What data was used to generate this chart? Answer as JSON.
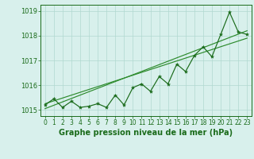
{
  "title": "Graphe pression niveau de la mer (hPa)",
  "x_values": [
    0,
    1,
    2,
    3,
    4,
    5,
    6,
    7,
    8,
    9,
    10,
    11,
    12,
    13,
    14,
    15,
    16,
    17,
    18,
    19,
    20,
    21,
    22,
    23
  ],
  "y_values": [
    1015.2,
    1015.45,
    1015.1,
    1015.35,
    1015.1,
    1015.15,
    1015.25,
    1015.1,
    1015.6,
    1015.2,
    1015.9,
    1016.05,
    1015.75,
    1016.35,
    1016.05,
    1016.85,
    1016.55,
    1017.2,
    1017.55,
    1017.15,
    1018.05,
    1018.95,
    1018.15,
    1018.05
  ],
  "trend1_x": [
    0,
    23
  ],
  "trend1_y": [
    1015.05,
    1018.2
  ],
  "trend2_x": [
    0,
    23
  ],
  "trend2_y": [
    1015.25,
    1017.9
  ],
  "ylim": [
    1014.75,
    1019.25
  ],
  "xlim": [
    -0.5,
    23.5
  ],
  "yticks": [
    1015,
    1016,
    1017,
    1018,
    1019
  ],
  "xticks": [
    0,
    1,
    2,
    3,
    4,
    5,
    6,
    7,
    8,
    9,
    10,
    11,
    12,
    13,
    14,
    15,
    16,
    17,
    18,
    19,
    20,
    21,
    22,
    23
  ],
  "line_color": "#1a6b1a",
  "trend_color": "#2d8b2d",
  "bg_color": "#d8f0ec",
  "grid_color": "#b0d8d0",
  "text_color": "#1a6b1a",
  "title_fontsize": 7.0,
  "tick_fontsize": 5.5,
  "ytick_fontsize": 6.0
}
